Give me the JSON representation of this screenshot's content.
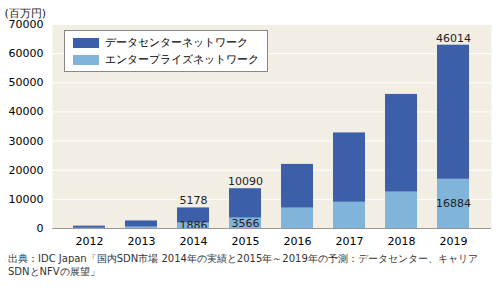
{
  "chart_data": {
    "type": "bar",
    "stacked": true,
    "ylabel": "(百万円)",
    "source": "出典：IDC Japan「国内SDN市場 2014年の実績と2015年～2019年の予測：データセンター、キャリアSDNとNFVの展望」",
    "categories": [
      "2012",
      "2013",
      "2014",
      "2015",
      "2016",
      "2017",
      "2018",
      "2019"
    ],
    "series": [
      {
        "name": "データセンターネットワーク",
        "color": "#3b5fa8",
        "values": [
          700,
          2100,
          5178,
          10090,
          15000,
          23800,
          33500,
          46014
        ],
        "value_labels": [
          null,
          null,
          "5178",
          "10090",
          null,
          null,
          null,
          "46014"
        ]
      },
      {
        "name": "エンタープライズネットワーク",
        "color": "#80b4da",
        "values": [
          100,
          500,
          1886,
          3566,
          7000,
          9000,
          12500,
          16884
        ],
        "value_labels": [
          null,
          null,
          "1886",
          "3566",
          null,
          null,
          null,
          "16884"
        ]
      }
    ],
    "ylim": [
      0,
      70000
    ],
    "yticks": [
      0,
      10000,
      20000,
      30000,
      40000,
      50000,
      60000,
      70000
    ],
    "grid": true,
    "legend": "top-left",
    "data_labels": true
  }
}
